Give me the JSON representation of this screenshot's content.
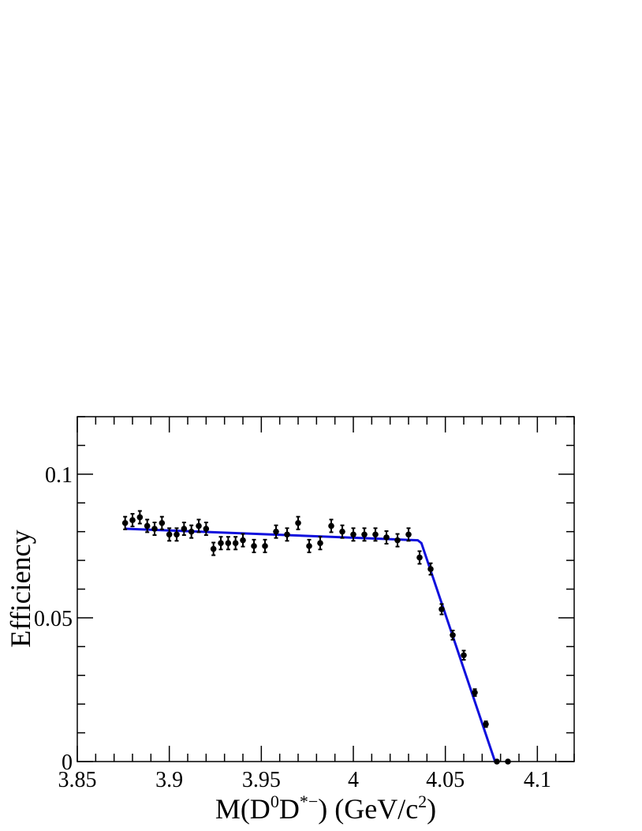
{
  "chart_data": {
    "type": "scatter",
    "xlabel_parts": {
      "prefix": "M(D",
      "sup1": "0",
      "mid": "D",
      "sup2": "*−",
      "after": ") (GeV/c",
      "sup3": "2",
      "end": ")"
    },
    "ylabel": "Efficiency",
    "xlim": [
      3.85,
      4.12
    ],
    "ylim": [
      0,
      0.12
    ],
    "xticks": [
      3.85,
      3.9,
      3.95,
      4.0,
      4.05,
      4.1
    ],
    "xtick_labels": [
      "3.85",
      "3.9",
      "3.95",
      "4",
      "4.05",
      "4.1"
    ],
    "yticks": [
      0,
      0.05,
      0.1
    ],
    "ytick_labels": [
      "0",
      "0.05",
      "0.1"
    ],
    "grid": false,
    "series": [
      {
        "kind": "points_with_errors",
        "color": "#000000",
        "x": [
          3.876,
          3.88,
          3.884,
          3.888,
          3.892,
          3.896,
          3.9,
          3.904,
          3.908,
          3.912,
          3.916,
          3.92,
          3.924,
          3.928,
          3.932,
          3.936,
          3.94,
          3.946,
          3.952,
          3.958,
          3.964,
          3.97,
          3.976,
          3.982,
          3.988,
          3.994,
          4.0,
          4.006,
          4.012,
          4.018,
          4.024,
          4.03,
          4.036,
          4.042,
          4.048,
          4.054,
          4.06,
          4.066,
          4.072,
          4.078,
          4.084
        ],
        "y": [
          0.083,
          0.084,
          0.085,
          0.082,
          0.081,
          0.083,
          0.079,
          0.079,
          0.081,
          0.08,
          0.082,
          0.081,
          0.074,
          0.076,
          0.076,
          0.076,
          0.077,
          0.075,
          0.075,
          0.08,
          0.079,
          0.083,
          0.075,
          0.076,
          0.082,
          0.08,
          0.079,
          0.079,
          0.079,
          0.078,
          0.077,
          0.079,
          0.071,
          0.067,
          0.053,
          0.044,
          0.037,
          0.024,
          0.013,
          0.0,
          0.0
        ],
        "yerr": [
          0.0022,
          0.0022,
          0.0022,
          0.0022,
          0.0022,
          0.0022,
          0.0022,
          0.0022,
          0.0022,
          0.0022,
          0.0022,
          0.0022,
          0.0022,
          0.0022,
          0.0022,
          0.0022,
          0.0022,
          0.0022,
          0.0022,
          0.0022,
          0.0022,
          0.0022,
          0.0022,
          0.0022,
          0.0022,
          0.0022,
          0.0022,
          0.0022,
          0.0022,
          0.0022,
          0.0022,
          0.0022,
          0.0022,
          0.002,
          0.0018,
          0.0016,
          0.0016,
          0.0012,
          0.001,
          0.0,
          0.0
        ]
      },
      {
        "kind": "fit_line",
        "color": "#1010dd",
        "x": [
          3.876,
          4.035,
          4.037,
          4.077
        ],
        "y": [
          0.081,
          0.077,
          0.076,
          0.0
        ]
      }
    ]
  }
}
